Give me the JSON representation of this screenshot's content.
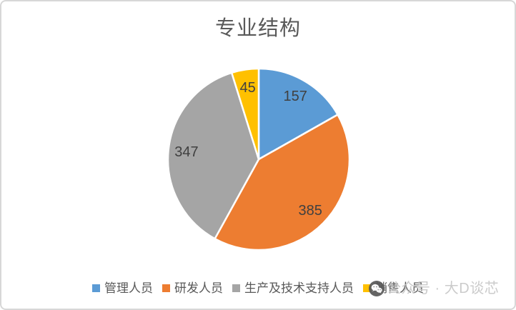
{
  "frame": {
    "background": "#ffffff",
    "border_color": "#d7d7d7"
  },
  "chart_data": {
    "type": "pie",
    "title": "专业结构",
    "categories": [
      "管理人员",
      "研发人员",
      "生产及技术支持人员",
      "销售人员"
    ],
    "values": [
      157,
      385,
      347,
      45
    ],
    "colors": [
      "#5B9BD5",
      "#ED7D31",
      "#A5A5A5",
      "#FFC000"
    ],
    "total": 934,
    "start_angle_deg": 0,
    "direction": "clockwise",
    "data_labels_shown": "values",
    "legend_position": "bottom",
    "title_color": "#595959",
    "data_label_color": "#404040",
    "legend_text_color": "#595959",
    "slice_border_color": "#ffffff"
  },
  "legend": {
    "items": [
      {
        "label": "管理人员"
      },
      {
        "label": "研发人员"
      },
      {
        "label": "生产及技术支持人员"
      },
      {
        "label": "销售人员"
      }
    ]
  },
  "watermark": {
    "text": "公众号 · 大D谈芯",
    "color": "#c7c7c7",
    "icon": "wechat-logo"
  }
}
